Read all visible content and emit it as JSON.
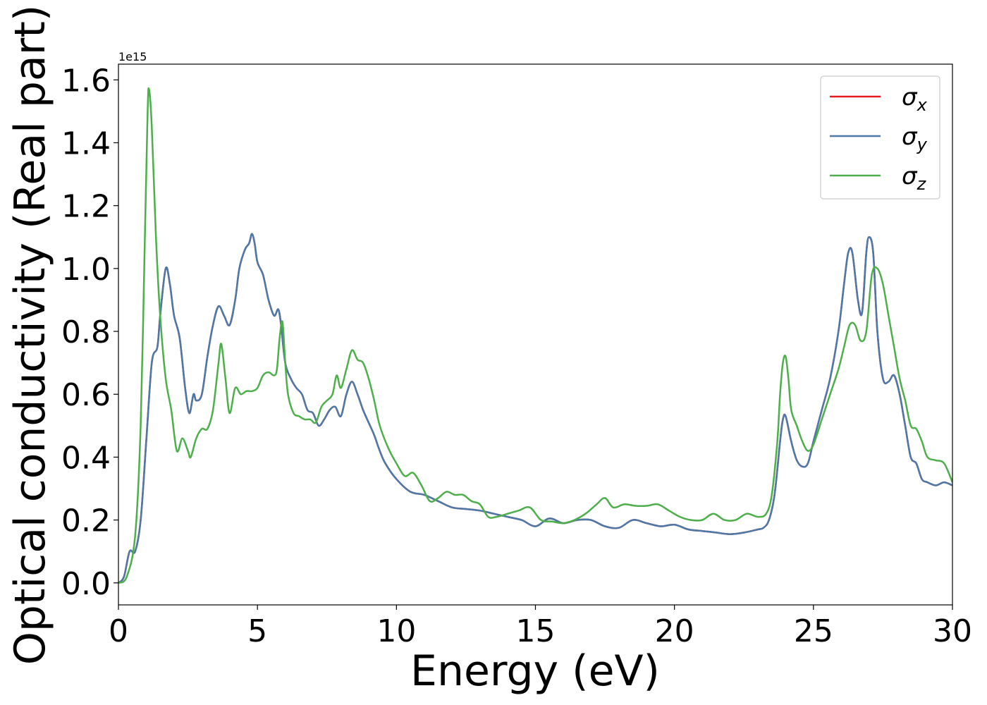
{
  "chart_data": {
    "type": "line",
    "xlabel": "Energy (eV)",
    "ylabel": "Optical conductivity (Real part)",
    "y_multiplier_label": "1e15",
    "xlim": [
      0,
      30
    ],
    "ylim": [
      -0.07,
      1.65
    ],
    "xticks": [
      "0",
      "5",
      "10",
      "15",
      "20",
      "25",
      "30"
    ],
    "xtick_values": [
      0,
      5,
      10,
      15,
      20,
      25,
      30
    ],
    "yticks": [
      "0.0",
      "0.2",
      "0.4",
      "0.6",
      "0.8",
      "1.0",
      "1.2",
      "1.4",
      "1.6"
    ],
    "ytick_values": [
      0.0,
      0.2,
      0.4,
      0.6,
      0.8,
      1.0,
      1.2,
      1.4,
      1.6
    ],
    "legend_position": "top-right",
    "series": [
      {
        "name": "σx",
        "symbol": "σ",
        "subscript": "x",
        "color": "#e41a1c",
        "x": [
          0,
          0.2,
          0.4,
          0.6,
          0.8,
          1.0,
          1.2,
          1.4,
          1.5,
          1.7,
          1.85,
          2.0,
          2.2,
          2.4,
          2.55,
          2.7,
          2.8,
          3.0,
          3.2,
          3.4,
          3.6,
          3.8,
          4.0,
          4.2,
          4.35,
          4.55,
          4.7,
          4.8,
          4.9,
          5.0,
          5.2,
          5.4,
          5.6,
          5.75,
          5.85,
          6.0,
          6.2,
          6.4,
          6.6,
          6.8,
          7.0,
          7.2,
          7.4,
          7.6,
          7.8,
          8.0,
          8.2,
          8.4,
          8.6,
          8.8,
          9.0,
          9.2,
          9.4,
          9.6,
          10.0,
          10.5,
          11.0,
          11.5,
          12.0,
          12.5,
          13.0,
          13.5,
          14.0,
          14.5,
          15.0,
          15.5,
          16.0,
          16.5,
          17.0,
          17.5,
          18.0,
          18.5,
          19.0,
          19.5,
          20.0,
          20.5,
          21.0,
          21.5,
          22.0,
          22.5,
          23.0,
          23.2,
          23.4,
          23.6,
          23.8,
          23.9,
          24.0,
          24.2,
          24.4,
          24.6,
          24.8,
          25.0,
          25.3,
          25.6,
          25.9,
          26.1,
          26.25,
          26.4,
          26.6,
          26.75,
          26.9,
          27.0,
          27.15,
          27.3,
          27.5,
          27.7,
          27.9,
          28.1,
          28.3,
          28.5,
          28.7,
          28.9,
          29.1,
          29.4,
          29.7,
          30.0
        ],
        "y": [
          0,
          0.02,
          0.1,
          0.1,
          0.2,
          0.45,
          0.7,
          0.75,
          0.85,
          1.0,
          0.95,
          0.85,
          0.78,
          0.62,
          0.54,
          0.6,
          0.58,
          0.6,
          0.72,
          0.82,
          0.88,
          0.85,
          0.82,
          0.9,
          1.0,
          1.06,
          1.08,
          1.11,
          1.08,
          1.02,
          0.98,
          0.9,
          0.85,
          0.87,
          0.82,
          0.7,
          0.65,
          0.62,
          0.6,
          0.55,
          0.54,
          0.5,
          0.52,
          0.55,
          0.56,
          0.53,
          0.6,
          0.64,
          0.6,
          0.55,
          0.51,
          0.47,
          0.42,
          0.38,
          0.33,
          0.29,
          0.28,
          0.26,
          0.24,
          0.235,
          0.23,
          0.22,
          0.21,
          0.2,
          0.18,
          0.205,
          0.19,
          0.2,
          0.2,
          0.18,
          0.175,
          0.2,
          0.19,
          0.18,
          0.185,
          0.17,
          0.165,
          0.16,
          0.155,
          0.16,
          0.17,
          0.175,
          0.2,
          0.28,
          0.45,
          0.52,
          0.53,
          0.45,
          0.39,
          0.37,
          0.38,
          0.45,
          0.55,
          0.65,
          0.8,
          0.95,
          1.05,
          1.05,
          0.9,
          0.86,
          1.05,
          1.1,
          1.05,
          0.8,
          0.65,
          0.64,
          0.66,
          0.6,
          0.5,
          0.4,
          0.38,
          0.33,
          0.32,
          0.31,
          0.32,
          0.31
        ]
      },
      {
        "name": "σy",
        "symbol": "σ",
        "subscript": "y",
        "color": "#4a79aa",
        "x": [
          0,
          0.2,
          0.4,
          0.6,
          0.8,
          1.0,
          1.2,
          1.4,
          1.5,
          1.7,
          1.85,
          2.0,
          2.2,
          2.4,
          2.55,
          2.7,
          2.8,
          3.0,
          3.2,
          3.4,
          3.6,
          3.8,
          4.0,
          4.2,
          4.35,
          4.55,
          4.7,
          4.8,
          4.9,
          5.0,
          5.2,
          5.4,
          5.6,
          5.75,
          5.85,
          6.0,
          6.2,
          6.4,
          6.6,
          6.8,
          7.0,
          7.2,
          7.4,
          7.6,
          7.8,
          8.0,
          8.2,
          8.4,
          8.6,
          8.8,
          9.0,
          9.2,
          9.4,
          9.6,
          10.0,
          10.5,
          11.0,
          11.5,
          12.0,
          12.5,
          13.0,
          13.5,
          14.0,
          14.5,
          15.0,
          15.5,
          16.0,
          16.5,
          17.0,
          17.5,
          18.0,
          18.5,
          19.0,
          19.5,
          20.0,
          20.5,
          21.0,
          21.5,
          22.0,
          22.5,
          23.0,
          23.2,
          23.4,
          23.6,
          23.8,
          23.9,
          24.0,
          24.2,
          24.4,
          24.6,
          24.8,
          25.0,
          25.3,
          25.6,
          25.9,
          26.1,
          26.25,
          26.4,
          26.6,
          26.75,
          26.9,
          27.0,
          27.15,
          27.3,
          27.5,
          27.7,
          27.9,
          28.1,
          28.3,
          28.5,
          28.7,
          28.9,
          29.1,
          29.4,
          29.7,
          30.0
        ],
        "y": [
          0,
          0.02,
          0.1,
          0.1,
          0.2,
          0.45,
          0.7,
          0.75,
          0.85,
          1.0,
          0.95,
          0.85,
          0.78,
          0.62,
          0.54,
          0.6,
          0.58,
          0.6,
          0.72,
          0.82,
          0.88,
          0.85,
          0.82,
          0.9,
          1.0,
          1.06,
          1.08,
          1.11,
          1.08,
          1.02,
          0.98,
          0.9,
          0.85,
          0.87,
          0.82,
          0.7,
          0.65,
          0.62,
          0.6,
          0.55,
          0.54,
          0.5,
          0.52,
          0.55,
          0.56,
          0.53,
          0.6,
          0.64,
          0.6,
          0.55,
          0.51,
          0.47,
          0.42,
          0.38,
          0.33,
          0.29,
          0.28,
          0.26,
          0.24,
          0.235,
          0.23,
          0.22,
          0.21,
          0.2,
          0.18,
          0.205,
          0.19,
          0.2,
          0.2,
          0.18,
          0.175,
          0.2,
          0.19,
          0.18,
          0.185,
          0.17,
          0.165,
          0.16,
          0.155,
          0.16,
          0.17,
          0.175,
          0.2,
          0.28,
          0.45,
          0.52,
          0.53,
          0.45,
          0.39,
          0.37,
          0.38,
          0.45,
          0.55,
          0.65,
          0.8,
          0.95,
          1.05,
          1.05,
          0.9,
          0.86,
          1.05,
          1.1,
          1.05,
          0.8,
          0.65,
          0.64,
          0.66,
          0.6,
          0.5,
          0.4,
          0.38,
          0.33,
          0.32,
          0.31,
          0.32,
          0.31
        ]
      },
      {
        "name": "σz",
        "symbol": "σ",
        "subscript": "z",
        "color": "#4daf4a",
        "x": [
          0,
          0.3,
          0.6,
          0.8,
          0.95,
          1.05,
          1.1,
          1.2,
          1.35,
          1.5,
          1.7,
          1.9,
          2.1,
          2.3,
          2.5,
          2.6,
          2.8,
          3.0,
          3.2,
          3.4,
          3.6,
          3.7,
          3.85,
          4.0,
          4.2,
          4.4,
          4.6,
          4.8,
          5.0,
          5.2,
          5.4,
          5.6,
          5.7,
          5.8,
          5.9,
          6.0,
          6.1,
          6.3,
          6.5,
          6.7,
          6.9,
          7.1,
          7.3,
          7.5,
          7.7,
          7.85,
          8.0,
          8.2,
          8.4,
          8.6,
          8.8,
          9.0,
          9.2,
          9.4,
          9.7,
          10.0,
          10.3,
          10.6,
          10.9,
          11.2,
          11.5,
          11.8,
          12.1,
          12.4,
          12.7,
          13.0,
          13.3,
          13.6,
          14.0,
          14.4,
          14.8,
          15.2,
          15.6,
          16.0,
          16.4,
          16.8,
          17.2,
          17.5,
          17.8,
          18.2,
          18.6,
          19.0,
          19.4,
          19.8,
          20.2,
          20.6,
          21.0,
          21.4,
          21.8,
          22.2,
          22.6,
          23.0,
          23.3,
          23.5,
          23.7,
          23.8,
          23.9,
          24.0,
          24.1,
          24.2,
          24.4,
          24.6,
          24.8,
          25.0,
          25.3,
          25.6,
          25.9,
          26.1,
          26.3,
          26.5,
          26.7,
          26.9,
          27.1,
          27.3,
          27.5,
          27.7,
          27.9,
          28.1,
          28.3,
          28.5,
          28.7,
          28.9,
          29.1,
          29.4,
          29.7,
          30.0
        ],
        "y": [
          0,
          0.02,
          0.15,
          0.5,
          1.1,
          1.5,
          1.57,
          1.45,
          1.1,
          0.85,
          0.65,
          0.55,
          0.42,
          0.46,
          0.42,
          0.4,
          0.46,
          0.49,
          0.49,
          0.55,
          0.7,
          0.76,
          0.65,
          0.54,
          0.62,
          0.6,
          0.61,
          0.61,
          0.62,
          0.66,
          0.67,
          0.66,
          0.68,
          0.78,
          0.83,
          0.7,
          0.6,
          0.54,
          0.53,
          0.52,
          0.52,
          0.51,
          0.56,
          0.58,
          0.6,
          0.66,
          0.62,
          0.68,
          0.74,
          0.71,
          0.7,
          0.65,
          0.58,
          0.5,
          0.43,
          0.38,
          0.34,
          0.35,
          0.31,
          0.26,
          0.27,
          0.29,
          0.28,
          0.28,
          0.26,
          0.25,
          0.21,
          0.21,
          0.22,
          0.23,
          0.24,
          0.2,
          0.195,
          0.19,
          0.2,
          0.22,
          0.25,
          0.27,
          0.24,
          0.25,
          0.245,
          0.245,
          0.25,
          0.23,
          0.21,
          0.2,
          0.2,
          0.22,
          0.2,
          0.2,
          0.22,
          0.21,
          0.22,
          0.28,
          0.45,
          0.6,
          0.7,
          0.72,
          0.65,
          0.55,
          0.5,
          0.45,
          0.42,
          0.44,
          0.52,
          0.6,
          0.68,
          0.75,
          0.82,
          0.82,
          0.77,
          0.8,
          0.98,
          1.0,
          0.95,
          0.85,
          0.75,
          0.65,
          0.58,
          0.5,
          0.49,
          0.45,
          0.4,
          0.39,
          0.38,
          0.32
        ]
      }
    ]
  }
}
